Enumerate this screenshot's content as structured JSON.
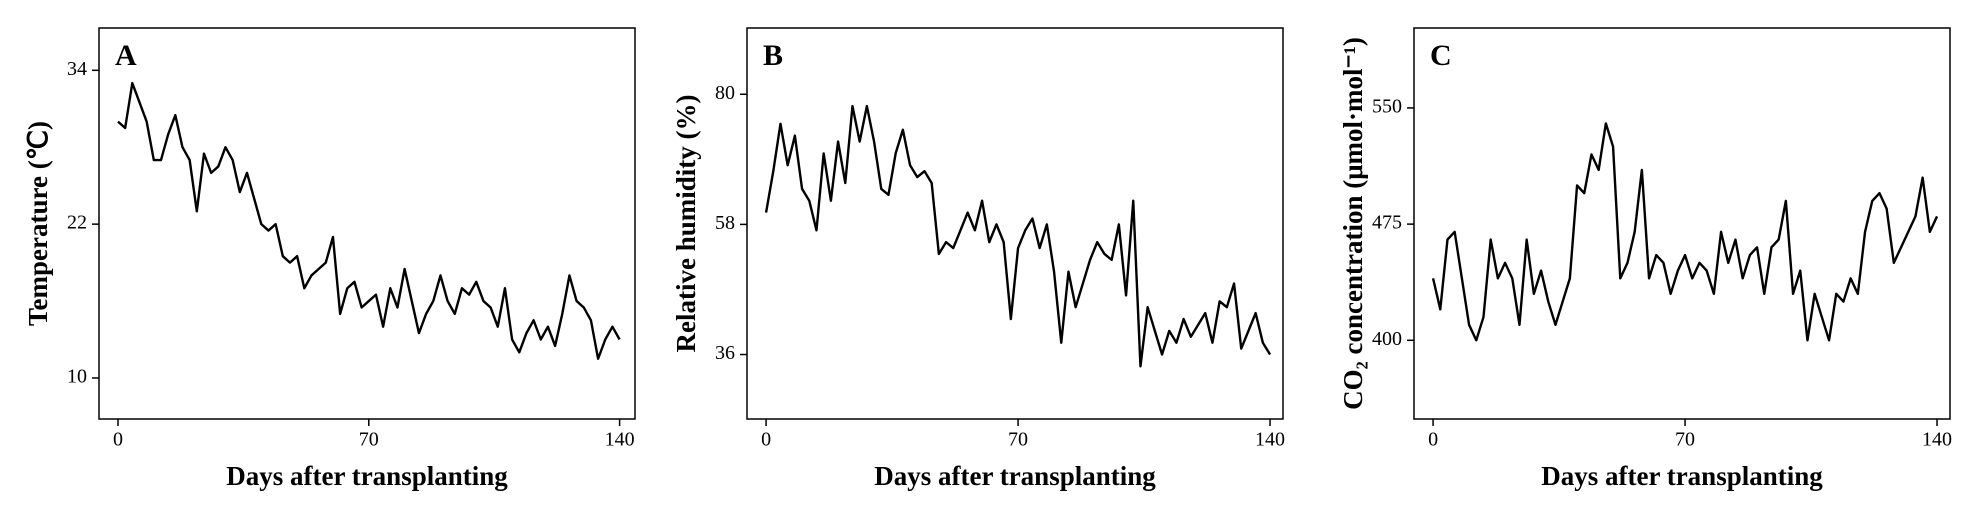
{
  "chart_data": [
    {
      "type": "line",
      "panel_label": "A",
      "xlabel": "Days after transplanting",
      "ylabel": "Temperature (℃)",
      "xlim": [
        -5.3,
        144.3
      ],
      "xticks": [
        0,
        70,
        140
      ],
      "ylim": [
        6.8,
        37.3
      ],
      "yticks": [
        10,
        22,
        34
      ],
      "x": [
        0,
        2,
        4,
        6,
        8,
        10,
        12,
        14,
        16,
        18,
        20,
        22,
        24,
        26,
        28,
        30,
        32,
        34,
        36,
        38,
        40,
        42,
        44,
        46,
        48,
        50,
        52,
        54,
        56,
        58,
        60,
        62,
        64,
        66,
        68,
        70,
        72,
        74,
        76,
        78,
        80,
        82,
        84,
        86,
        88,
        90,
        92,
        94,
        96,
        98,
        100,
        102,
        104,
        106,
        108,
        110,
        112,
        114,
        116,
        118,
        120,
        122,
        124,
        126,
        128,
        130,
        132,
        134,
        136,
        138,
        140
      ],
      "series": [
        {
          "color": "#000000",
          "values": [
            30,
            29.5,
            33,
            31.5,
            30,
            27,
            27,
            29,
            30.5,
            28,
            27,
            23,
            27.5,
            26,
            26.5,
            28,
            27,
            24.5,
            26,
            24,
            22,
            21.5,
            22,
            19.5,
            19,
            19.5,
            17,
            18,
            18.5,
            19,
            21,
            15,
            17,
            17.5,
            15.5,
            16,
            16.5,
            14,
            17,
            15.5,
            18.5,
            16,
            13.5,
            15,
            16,
            18,
            16,
            15,
            17,
            16.5,
            17.5,
            16,
            15.5,
            14,
            17,
            13,
            12,
            13.5,
            14.5,
            13,
            14,
            12.5,
            15,
            18,
            16,
            15.5,
            14.5,
            11.5,
            13,
            14,
            13
          ]
        }
      ]
    },
    {
      "type": "line",
      "panel_label": "B",
      "xlabel": "Days after transplanting",
      "ylabel": "Relative humidity (%)",
      "xlim": [
        -5.3,
        143.6
      ],
      "xticks": [
        0,
        70,
        140
      ],
      "ylim": [
        25.1,
        91.2
      ],
      "yticks": [
        36,
        58,
        80
      ],
      "x": [
        0,
        2,
        4,
        6,
        8,
        10,
        12,
        14,
        16,
        18,
        20,
        22,
        24,
        26,
        28,
        30,
        32,
        34,
        36,
        38,
        40,
        42,
        44,
        46,
        48,
        50,
        52,
        54,
        56,
        58,
        60,
        62,
        64,
        66,
        68,
        70,
        72,
        74,
        76,
        78,
        80,
        82,
        84,
        86,
        88,
        90,
        92,
        94,
        96,
        98,
        100,
        102,
        104,
        106,
        108,
        110,
        112,
        114,
        116,
        118,
        120,
        122,
        124,
        126,
        128,
        130,
        132,
        134,
        136,
        138,
        140
      ],
      "series": [
        {
          "color": "#000000",
          "values": [
            60,
            67,
            75,
            68,
            73,
            64,
            62,
            57,
            70,
            62,
            72,
            65,
            78,
            72,
            78,
            72,
            64,
            63,
            70,
            74,
            68,
            66,
            67,
            65,
            53,
            55,
            54,
            57,
            60,
            57,
            62,
            55,
            58,
            55,
            42,
            54,
            57,
            59,
            54,
            58,
            50,
            38,
            50,
            44,
            48,
            52,
            55,
            53,
            52,
            58,
            46,
            62,
            34,
            44,
            40,
            36,
            40,
            38,
            42,
            39,
            41,
            43,
            38,
            45,
            44,
            48,
            37,
            40,
            43,
            38,
            36
          ]
        }
      ]
    },
    {
      "type": "line",
      "panel_label": "C",
      "xlabel": "Days after transplanting",
      "ylabel": "CO₂ concentration (μmol·mol⁻¹)",
      "xlim": [
        -5.3,
        143.6
      ],
      "xticks": [
        0,
        70,
        140
      ],
      "ylim": [
        349.2,
        601.6
      ],
      "yticks": [
        400,
        475,
        550
      ],
      "x": [
        0,
        2,
        4,
        6,
        8,
        10,
        12,
        14,
        16,
        18,
        20,
        22,
        24,
        26,
        28,
        30,
        32,
        34,
        36,
        38,
        40,
        42,
        44,
        46,
        48,
        50,
        52,
        54,
        56,
        58,
        60,
        62,
        64,
        66,
        68,
        70,
        72,
        74,
        76,
        78,
        80,
        82,
        84,
        86,
        88,
        90,
        92,
        94,
        96,
        98,
        100,
        102,
        104,
        106,
        108,
        110,
        112,
        114,
        116,
        118,
        120,
        122,
        124,
        126,
        128,
        130,
        132,
        134,
        136,
        138,
        140
      ],
      "series": [
        {
          "color": "#000000",
          "values": [
            440,
            420,
            465,
            470,
            440,
            410,
            400,
            415,
            465,
            440,
            450,
            440,
            410,
            465,
            430,
            445,
            425,
            410,
            425,
            440,
            500,
            495,
            520,
            510,
            540,
            525,
            440,
            450,
            470,
            510,
            440,
            455,
            450,
            430,
            445,
            455,
            440,
            450,
            445,
            430,
            470,
            450,
            465,
            440,
            455,
            460,
            430,
            460,
            465,
            490,
            430,
            445,
            400,
            430,
            415,
            400,
            430,
            425,
            440,
            430,
            470,
            490,
            495,
            485,
            450,
            460,
            470,
            480,
            505,
            470,
            480
          ]
        }
      ]
    }
  ]
}
